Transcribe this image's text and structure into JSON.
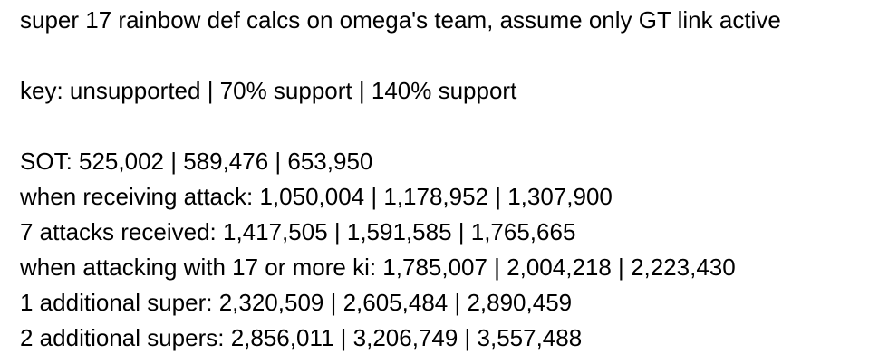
{
  "title": "super 17 rainbow def calcs on omega's team, assume only GT link active",
  "key": "key: unsupported | 70% support | 140% support",
  "rows": [
    "SOT: 525,002 | 589,476 | 653,950",
    "when receiving attack: 1,050,004 | 1,178,952 | 1,307,900",
    "7 attacks received: 1,417,505 | 1,591,585 | 1,765,665",
    "when attacking with 17 or more ki: 1,785,007 | 2,004,218 | 2,223,430",
    "1 additional super: 2,320,509 | 2,605,484 | 2,890,459",
    "2 additional supers: 2,856,011 | 3,206,749 | 3,557,488"
  ]
}
